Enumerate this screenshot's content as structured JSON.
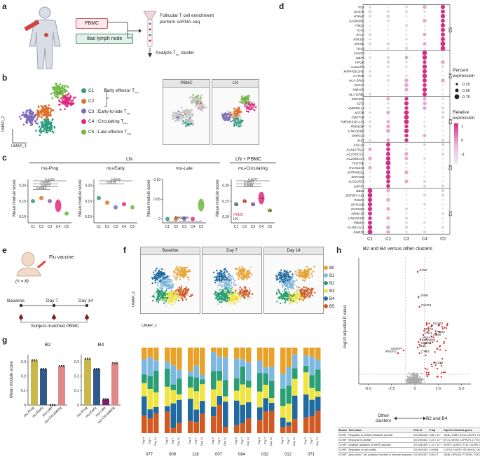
{
  "panels": {
    "a": {
      "letter": "a",
      "pbmc_label": "PBMC",
      "node_label": "Iliac lymph node",
      "step1": "Follicular T cell enrichment",
      "step2": "perform scRNA-seq",
      "step3": "Analyze T",
      "step3_sub": "FH",
      "step3_end": " cluster"
    },
    "b": {
      "letter": "b",
      "umap_x": "UMAP_1",
      "umap_y": "UMAP_2",
      "legend": [
        {
          "code": "C1",
          "label": "Early effector T",
          "sub": "FH",
          "color": "#2e9c7d"
        },
        {
          "code": "C2",
          "label": "",
          "sub": "",
          "color": "#e0702a"
        },
        {
          "code": "C3",
          "label": ": Early-to-late T",
          "sub": "FH",
          "color": "#7b6bb8"
        },
        {
          "code": "C4",
          "label": ": Circulating T",
          "sub": "FH",
          "color": "#e2297f"
        },
        {
          "code": "C5",
          "label": ": Late effector T",
          "sub": "FH",
          "color": "#6db83f"
        }
      ],
      "sub_titles": [
        "PBMC",
        "LN"
      ]
    },
    "c": {
      "letter": "c",
      "ln_header": "LN",
      "lnpbmc_header": "LN + PBMC",
      "ylabel": "Mean module score",
      "plots": [
        {
          "title": "mu-Prog",
          "yticks": [
            "0.10",
            "0.15",
            "0.20"
          ],
          "cats": [
            "C1",
            "C2",
            "C3",
            "C4",
            "C5"
          ],
          "pvals": [
            "0.0150",
            "0.0065",
            "0.0077",
            "0.0334"
          ]
        },
        {
          "title": "mu-Early",
          "yticks": [
            "0.10",
            "0.15",
            "0.20"
          ],
          "cats": [
            "C1",
            "C2",
            "C3",
            "C4",
            "C5"
          ],
          "pvals": [
            "0.0049",
            "0.0105"
          ]
        },
        {
          "title": "mu-Late",
          "yticks": [
            "0",
            "0.05",
            "0.10"
          ],
          "cats": [
            "C1",
            "C2",
            "C3",
            "C4",
            "C5"
          ],
          "note": "Negative"
        },
        {
          "title": "mu-Circulating",
          "yticks": [
            "0.10",
            "0.15",
            "0.20"
          ],
          "cats": [
            "C1",
            "C2",
            "C3",
            "C4",
            "C5"
          ],
          "pvals": [
            "0.0077",
            "0.0053",
            "0.0061"
          ],
          "legend": [
            "PBMC",
            "LN"
          ]
        }
      ]
    },
    "d": {
      "letter": "d",
      "genes": [
        "TOX",
        "DUSP6",
        "PTPN7",
        "GADD45G",
        "ITM2A",
        "ICA1",
        "BTLA",
        "PDCD1",
        "DRAIC",
        "TOX2",
        "FOXP3",
        "GBP5",
        "HPGD",
        "C12orf75",
        "MIR4435-2HG",
        "CYTOR",
        "HLA-DPA1",
        "ANXA2",
        "NIBAN1",
        "HLA-DPB1",
        "ENOSF1",
        "SZT2",
        "HNRNPLL2",
        "MTOR",
        "GRETAB",
        "TMEM161B-AS1",
        "PDE4DIP",
        "LINC00342",
        "SNHG14",
        "XIST",
        "SOCS3",
        "ALS12T91.2",
        "AC253572.2",
        "AC245014.3",
        "TENT5C",
        "RCAN3AS",
        "MTRNR2L1",
        "SIRT1D1",
        "ALG2153.5",
        "USP9Y",
        "BBS2",
        "ZNF567-AS1",
        "PANK4",
        "MYO1SB",
        "CHCHD6",
        "ARMCX5",
        "LINC02328",
        "RBM10",
        "AL391121.1",
        "DHRS3"
      ],
      "columns": [
        "C1",
        "C2",
        "C3",
        "C4",
        "C5"
      ],
      "groups": [
        "C5",
        "C4",
        "C3",
        "C2",
        "C1"
      ],
      "pct_title1": "Percent",
      "pct_title2": "expression",
      "pct_values": [
        "0.25",
        "0.50",
        "0.75"
      ],
      "rel_title1": "Relative",
      "rel_title2": "expression",
      "rel_ticks": [
        "1",
        "0",
        "-1"
      ]
    },
    "e": {
      "letter": "e",
      "vaccine": "Flu vaccine",
      "n": "(n = 8)",
      "timepoints": [
        "Baseline",
        "Day 7",
        "Day 14"
      ],
      "caption": "Subject-matched PBMC"
    },
    "f": {
      "letter": "f",
      "titles": [
        "Baseline",
        "Day 7",
        "Day 14"
      ],
      "umap_x": "UMAP_1",
      "umap_y": "UMAP_2",
      "clusters": [
        {
          "name": "B0",
          "color": "#e8a22a"
        },
        {
          "name": "B1",
          "color": "#7cb8e0"
        },
        {
          "name": "B2",
          "color": "#2a9e74"
        },
        {
          "name": "B3",
          "color": "#f0e440"
        },
        {
          "name": "B4",
          "color": "#1f6aa0"
        },
        {
          "name": "B5",
          "color": "#d05a22"
        }
      ],
      "subjects": [
        "077",
        "009",
        "118",
        "007",
        "084",
        "032",
        "012",
        "071"
      ],
      "day_labels": [
        "Day 0",
        "Day 7",
        "Day 14"
      ]
    },
    "g": {
      "letter": "g",
      "ylabel": "Mean module score",
      "plots": [
        {
          "title": "B2",
          "yticks": [
            "0",
            "0.1",
            "0.2",
            "0.3"
          ],
          "cats": [
            "mu-Prog",
            "mu-Early",
            "mu-Late",
            "mu-Circulating"
          ],
          "values": [
            0.31,
            0.25,
            0.0,
            0.27
          ]
        },
        {
          "title": "B4",
          "yticks": [
            "0",
            "0.1",
            "0.2",
            "0.3"
          ],
          "cats": [
            "mu-Prog",
            "mu-Early",
            "mu-Late",
            "mu-Circulating"
          ],
          "values": [
            0.32,
            0.25,
            0.04,
            0.29
          ]
        }
      ],
      "colors": [
        "#c8b84a",
        "#2f5a8a",
        "#7a2070",
        "#e0878a"
      ]
    },
    "h": {
      "letter": "h",
      "title": "B2 and B4 versus other clusters",
      "ylabel": "-log10 adjusted P value",
      "xlabel": "log2 fold change",
      "xticks": [
        "-5.0",
        "-2.5",
        "0",
        "2.5",
        "5.0"
      ],
      "left_label1": "Other",
      "left_label2": "clusters",
      "right_label": "B2 and B4",
      "gene_labels": [
        "JUND",
        "JUNB",
        "CXCR4",
        "RGS1",
        "DUSP1",
        "BTG1",
        "CD69",
        "FTH1",
        "ANXA1",
        "LINC01578",
        "GIMAP7",
        "RPS4Y1",
        "SELL",
        "CYCS",
        "RGS10",
        "SOCS3"
      ],
      "table_headers": [
        "Source",
        "Term name",
        "Term id",
        "P adj",
        "Top five intersect genes"
      ],
      "table_rows": [
        [
          "GO:BP",
          "Regulation of protein metabolic process",
          "GO:0051246",
          "3.86 × 10⁻⁷",
          "JUND, JUNB, BTG1, DUSP1, IGN"
        ],
        [
          "GO:BP",
          "Response to peptide",
          "GO:1901652",
          "4.33 × 10⁻⁶",
          "BTG1, MEIS2, LEPROTL1, FOS, IFI"
        ],
        [
          "GO:BP",
          "Negative regulation of MAPK cascade",
          "GO:0043409",
          "4.10 × 10⁻⁵",
          "DUSP1, DUSP2, FOS, DUSP6, DU SP10"
        ],
        [
          "GO:BP",
          "Regulation of cell motility",
          "GO:2000145",
          "0.00068",
          "CXCR4, DUSP1, SELENOK, DUSP3, RGS1"
        ],
        [
          "GO:BP",
          "Alpha-beta T cell activation involved in immune response",
          "GO:0002287",
          "0.00127",
          "JUNB, GPR183, PTGER4, SOCS3, RGS1"
        ]
      ]
    }
  },
  "chart_data": [
    {
      "type": "scatter",
      "title": "mu-Prog",
      "categories": [
        "C1",
        "C2",
        "C3",
        "C4",
        "C5"
      ],
      "values": [
        0.15,
        0.16,
        0.15,
        0.135,
        0.11
      ],
      "ylim": [
        0.08,
        0.22
      ],
      "ylabel": "Mean module score"
    },
    {
      "type": "scatter",
      "title": "mu-Early",
      "categories": [
        "C1",
        "C2",
        "C3",
        "C4",
        "C5"
      ],
      "values": [
        0.16,
        0.145,
        0.13,
        0.14,
        0.13
      ],
      "ylim": [
        0.08,
        0.22
      ],
      "ylabel": "Mean module score"
    },
    {
      "type": "scatter",
      "title": "mu-Late",
      "categories": [
        "C1",
        "C2",
        "C3",
        "C4",
        "C5"
      ],
      "values": [
        0.0,
        0.0,
        0.0,
        0.0,
        0.035
      ],
      "ylim": [
        -0.01,
        0.1
      ],
      "ylabel": "Mean module score"
    },
    {
      "type": "scatter",
      "title": "mu-Circulating",
      "categories": [
        "C1",
        "C2",
        "C3",
        "C4",
        "C5"
      ],
      "values": [
        0.14,
        0.15,
        0.14,
        0.16,
        0.12
      ],
      "ylim": [
        0.08,
        0.22
      ],
      "ylabel": "Mean module score"
    },
    {
      "type": "bar",
      "title": "B2",
      "categories": [
        "mu-Prog",
        "mu-Early",
        "mu-Late",
        "mu-Circulating"
      ],
      "values": [
        0.31,
        0.25,
        0.0,
        0.27
      ],
      "ylim": [
        0,
        0.35
      ]
    },
    {
      "type": "bar",
      "title": "B4",
      "categories": [
        "mu-Prog",
        "mu-Early",
        "mu-Late",
        "mu-Circulating"
      ],
      "values": [
        0.32,
        0.25,
        0.04,
        0.29
      ],
      "ylim": [
        0,
        0.35
      ]
    }
  ]
}
